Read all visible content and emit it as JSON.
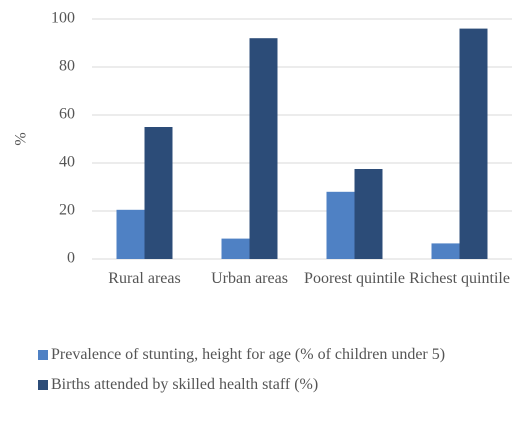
{
  "chart_data": {
    "type": "bar",
    "ylabel": "%",
    "categories": [
      "Rural areas",
      "Urban areas",
      "Poorest quintile",
      "Richest quintile"
    ],
    "series": [
      {
        "name": "Prevalence of stunting, height for age (% of children under 5)",
        "color": "#4f81c4",
        "values": [
          20.5,
          8.5,
          28,
          6.5
        ]
      },
      {
        "name": "Births attended by skilled health staff (%)",
        "color": "#2c4c78",
        "values": [
          55,
          92,
          37.5,
          96
        ]
      }
    ],
    "ylim": [
      0,
      100
    ],
    "yticks": [
      0,
      20,
      40,
      60,
      80,
      100
    ],
    "grid": true
  }
}
